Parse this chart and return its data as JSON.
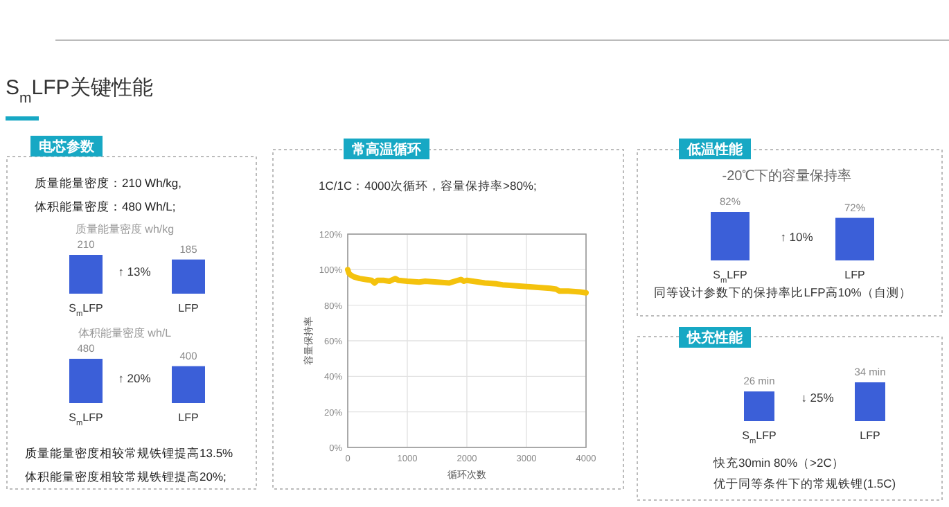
{
  "chart_data": [
    {
      "type": "other",
      "title": "S$_{m}$LFP关键性能",
      "subtitle": "电芯参数",
      "annotations": [
        "质量能量密度：210 Wh/kg,",
        "体积能量密度：480 Wh/L;",
        "质量能量密度相较常规铁锂提高13.5%",
        "体积能量密度相较常规铁锂提高20%;"
      ]
    },
    {
      "type": "bar",
      "title": "质量能量密度 wh/kg",
      "categories": [
        "S$_{m}$LFP",
        "LFP"
      ],
      "values": [
        210,
        185
      ],
      "color": "#3b5fd8",
      "data_labels": true,
      "annotations": [
        "↑ 13%"
      ]
    },
    {
      "type": "bar",
      "title": "体积能量密度 wh/L",
      "categories": [
        "S$_{m}$LFP",
        "LFP"
      ],
      "values": [
        480,
        400
      ],
      "color": "#3b5fd8",
      "data_labels": true,
      "annotations": [
        "↑ 20%"
      ]
    },
    {
      "type": "line",
      "title": "常高温循环",
      "subtitle": "1C/1C：4000次循环，容量保持率>80%;",
      "xlabel": "循环次数",
      "ylabel": "容量保持率",
      "xlim": [
        0,
        4000
      ],
      "xticks": [
        0,
        1000,
        2000,
        3000,
        4000
      ],
      "ylim": [
        0,
        120
      ],
      "yticks": [
        {
          "value": 0,
          "label": "0%"
        },
        {
          "value": 20,
          "label": "20%"
        },
        {
          "value": 40,
          "label": "40%"
        },
        {
          "value": 60,
          "label": "60%"
        },
        {
          "value": 80,
          "label": "80%"
        },
        {
          "value": 100,
          "label": "100%"
        },
        {
          "value": 120,
          "label": "120%"
        }
      ],
      "grid": true,
      "series": [
        {
          "color": "#f4c20d",
          "x": [
            0,
            20,
            50,
            100,
            200,
            300,
            400,
            450,
            500,
            600,
            700,
            800,
            850,
            1000,
            1200,
            1300,
            1500,
            1700,
            1800,
            1900,
            1950,
            2000,
            2100,
            2300,
            2500,
            2600,
            2800,
            3000,
            3200,
            3400,
            3500,
            3550,
            3700,
            3900,
            4000
          ],
          "values": [
            100,
            98,
            97,
            96,
            95,
            94.5,
            94,
            92.5,
            94,
            94,
            93.5,
            95,
            94,
            93.5,
            93,
            93.5,
            93,
            92.5,
            93.5,
            94.5,
            93.5,
            94,
            93.5,
            92.5,
            92,
            91.5,
            91,
            90.5,
            90,
            89.5,
            89,
            88,
            88,
            87.5,
            87
          ]
        }
      ]
    },
    {
      "type": "bar",
      "title": "低温性能",
      "subtitle": "-20℃下的容量保持率",
      "categories": [
        "S$_{m}$LFP",
        "LFP"
      ],
      "values": [
        82,
        72
      ],
      "value_labels": [
        "82%",
        "72%"
      ],
      "color": "#3b5fd8",
      "annotations": [
        "↑ 10%",
        "同等设计参数下的保持率比LFP高10%（自测）"
      ]
    },
    {
      "type": "bar",
      "title": "快充性能",
      "categories": [
        "S$_{m}$LFP",
        "LFP"
      ],
      "values": [
        26,
        34
      ],
      "value_labels": [
        "26 min",
        "34 min"
      ],
      "color": "#3b5fd8",
      "annotations": [
        "↓ 25%",
        "快充30min 80%（>2C）",
        "优于同等条件下的常规铁锂(1.5C)"
      ]
    }
  ]
}
